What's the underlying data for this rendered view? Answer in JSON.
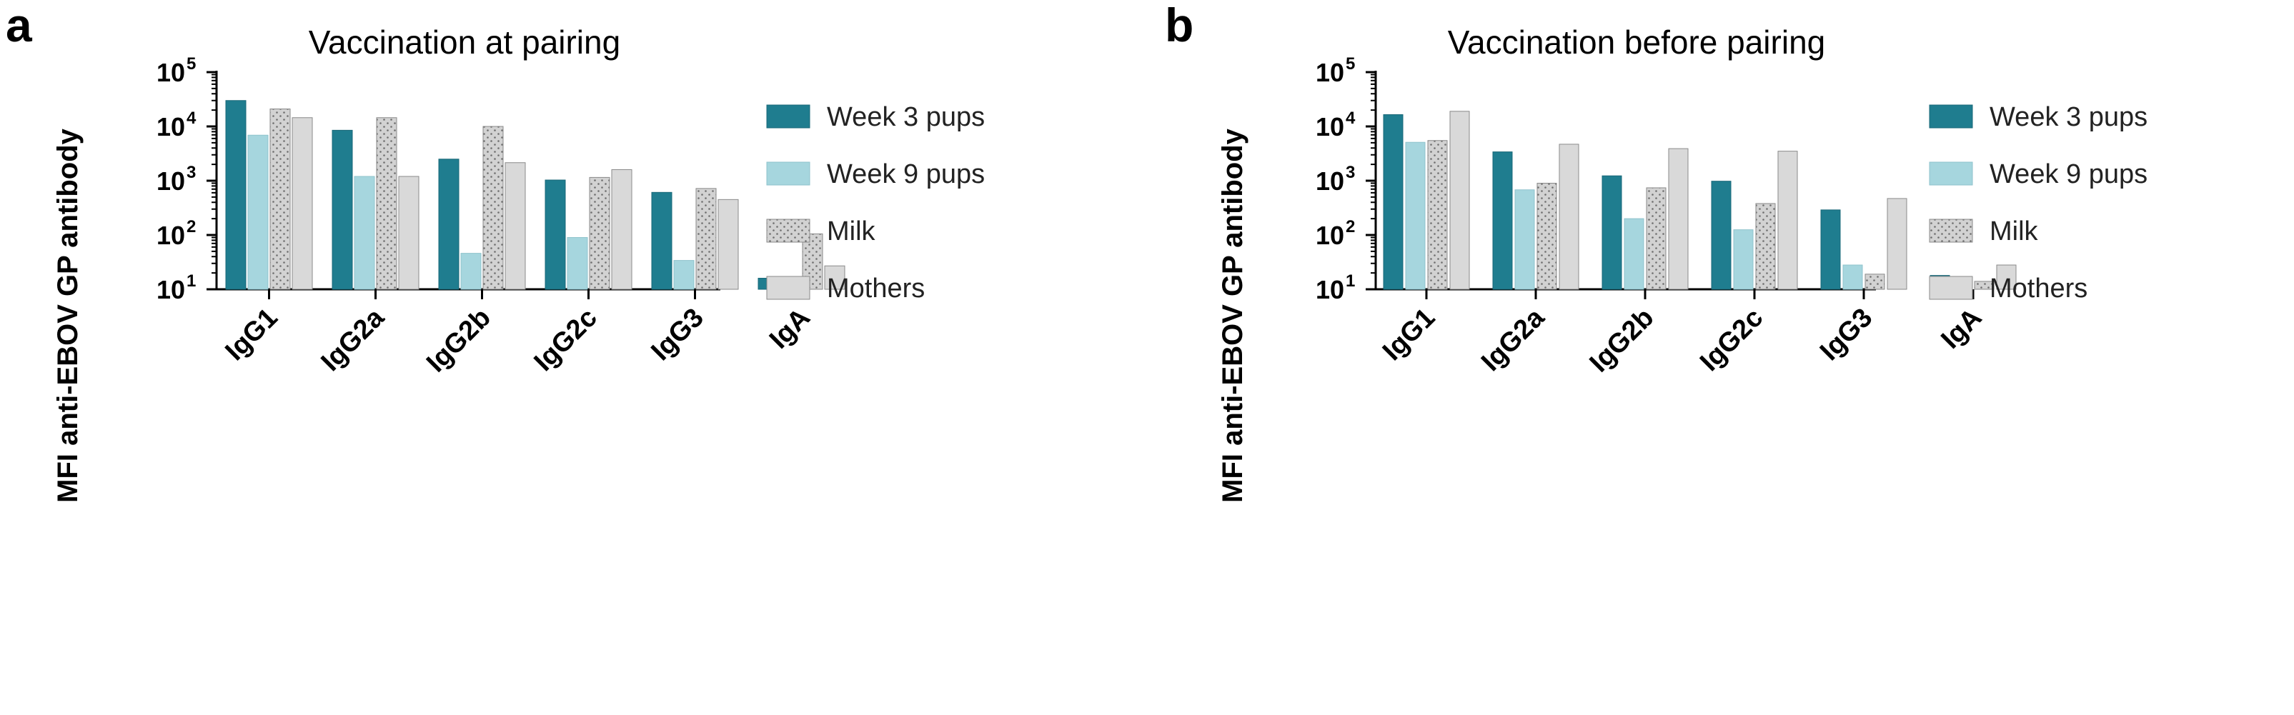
{
  "chart_data": [
    {
      "type": "bar",
      "panel": "a",
      "title": "Vaccination at pairing",
      "xlabel": "",
      "ylabel": "MFI anti-EBOV GP antibody",
      "yscale": "log",
      "ylim": [
        10,
        100000
      ],
      "yticks": [
        {
          "base": "10",
          "exp": "1"
        },
        {
          "base": "10",
          "exp": "2"
        },
        {
          "base": "10",
          "exp": "3"
        },
        {
          "base": "10",
          "exp": "4"
        },
        {
          "base": "10",
          "exp": "5"
        }
      ],
      "categories": [
        "IgG1",
        "IgG2a",
        "IgG2b",
        "IgG2c",
        "IgG3",
        "IgA"
      ],
      "series": [
        {
          "name": "Week 3 pups",
          "values": [
            30000,
            8500,
            2500,
            1030,
            610,
            16
          ]
        },
        {
          "name": "Week 9 pups",
          "values": [
            6900,
            1200,
            46,
            90,
            34,
            12
          ]
        },
        {
          "name": "Milk",
          "values": [
            21000,
            14500,
            10000,
            1150,
            720,
            105
          ]
        },
        {
          "name": "Mothers",
          "values": [
            14500,
            1200,
            2150,
            1600,
            450,
            27
          ]
        }
      ],
      "legend_position": "right"
    },
    {
      "type": "bar",
      "panel": "b",
      "title": "Vaccination before pairing",
      "xlabel": "",
      "ylabel": "MFI anti-EBOV GP antibody",
      "yscale": "log",
      "ylim": [
        10,
        100000
      ],
      "yticks": [
        {
          "base": "10",
          "exp": "1"
        },
        {
          "base": "10",
          "exp": "2"
        },
        {
          "base": "10",
          "exp": "3"
        },
        {
          "base": "10",
          "exp": "4"
        },
        {
          "base": "10",
          "exp": "5"
        }
      ],
      "categories": [
        "IgG1",
        "IgG2a",
        "IgG2b",
        "IgG2c",
        "IgG3",
        "IgA"
      ],
      "series": [
        {
          "name": "Week 3 pups",
          "values": [
            16500,
            3400,
            1230,
            980,
            290,
            18
          ]
        },
        {
          "name": "Week 9 pups",
          "values": [
            5100,
            680,
            200,
            125,
            28,
            10
          ]
        },
        {
          "name": "Milk",
          "values": [
            5500,
            900,
            740,
            380,
            19,
            14
          ]
        },
        {
          "name": "Mothers",
          "values": [
            19000,
            4700,
            3900,
            3500,
            470,
            28
          ]
        }
      ],
      "legend_position": "right"
    }
  ],
  "colors": {
    "week3": "#1f7d8f",
    "week9": "#a6d6de",
    "milk": "#d2d2d2",
    "mothers": "#d9d9d9"
  }
}
